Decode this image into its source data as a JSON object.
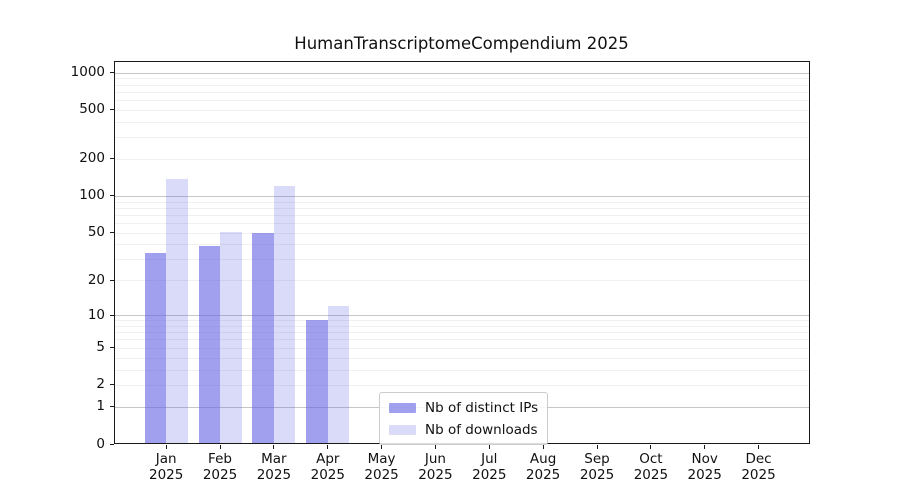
{
  "title": "HumanTranscriptomeCompendium 2025",
  "chart_data": {
    "type": "bar",
    "title": "HumanTranscriptomeCompendium 2025",
    "xlabel": "",
    "ylabel": "",
    "yscale": "log(1+y)",
    "ylim": [
      0,
      1240
    ],
    "grid": true,
    "legend_position": "lower center inside plot",
    "categories": [
      {
        "label": "Jan",
        "year": "2025"
      },
      {
        "label": "Feb",
        "year": "2025"
      },
      {
        "label": "Mar",
        "year": "2025"
      },
      {
        "label": "Apr",
        "year": "2025"
      },
      {
        "label": "May",
        "year": "2025"
      },
      {
        "label": "Jun",
        "year": "2025"
      },
      {
        "label": "Jul",
        "year": "2025"
      },
      {
        "label": "Aug",
        "year": "2025"
      },
      {
        "label": "Sep",
        "year": "2025"
      },
      {
        "label": "Oct",
        "year": "2025"
      },
      {
        "label": "Nov",
        "year": "2025"
      },
      {
        "label": "Dec",
        "year": "2025"
      }
    ],
    "yticks": [
      0,
      1,
      2,
      5,
      10,
      20,
      50,
      100,
      200,
      500,
      1000
    ],
    "major_grid_values": [
      1,
      10,
      100,
      1000
    ],
    "minor_grid_values": [
      2,
      3,
      4,
      5,
      6,
      7,
      8,
      9,
      20,
      30,
      40,
      50,
      60,
      70,
      80,
      90,
      200,
      300,
      400,
      500,
      600,
      700,
      800,
      900
    ],
    "series": [
      {
        "name": "Nb of distinct IPs",
        "color": "rgba(101,101,229,0.62)",
        "solid_color": "#9f9fef",
        "values": [
          34,
          39,
          50,
          9,
          0,
          0,
          0,
          0,
          0,
          0,
          0,
          0
        ]
      },
      {
        "name": "Nb of downloads",
        "color": "rgba(101,101,229,0.24)",
        "solid_color": "#dadaf9",
        "values": [
          137,
          51,
          120,
          12,
          0,
          0,
          0,
          0,
          0,
          0,
          0,
          0
        ]
      }
    ]
  }
}
